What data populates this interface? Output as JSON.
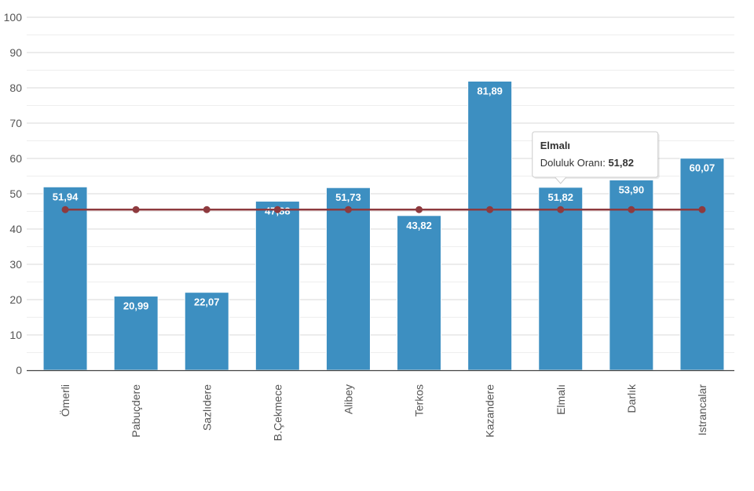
{
  "chart_data": {
    "type": "bar",
    "categories": [
      "Ömerli",
      "Pabuçdere",
      "Sazlıdere",
      "B.Çekmece",
      "Alibey",
      "Terkos",
      "Kazandere",
      "Elmalı",
      "Darlık",
      "Istrancalar"
    ],
    "series": [
      {
        "type": "bar",
        "values": [
          51.94,
          20.99,
          22.07,
          47.88,
          51.73,
          43.82,
          81.89,
          51.82,
          53.9,
          60.07
        ],
        "labels": [
          "51,94",
          "20,99",
          "22,07",
          "47,88",
          "51,73",
          "43,82",
          "81,89",
          "51,82",
          "53,90",
          "60,07"
        ],
        "color": "#3d8fc1"
      },
      {
        "type": "line",
        "values": [
          45.5,
          45.5,
          45.5,
          45.5,
          45.5,
          45.5,
          45.5,
          45.5,
          45.5,
          45.5
        ],
        "color": "#8e3a3e"
      }
    ],
    "yticks": [
      "0",
      "10",
      "20",
      "30",
      "40",
      "50",
      "60",
      "70",
      "80",
      "90",
      "100"
    ],
    "ylim": [
      0,
      100
    ],
    "grid": true,
    "tooltip": {
      "title": "Elmalı",
      "label": "Doluluk Oranı: ",
      "value": "51,82",
      "category_index": 7
    }
  }
}
